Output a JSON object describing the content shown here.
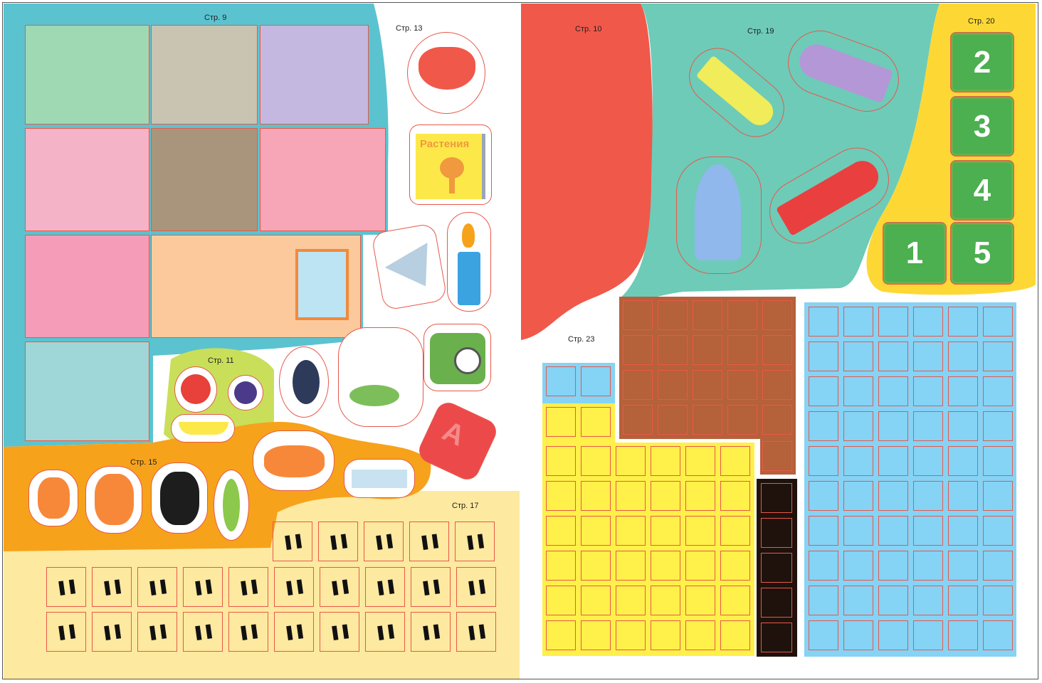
{
  "labels": {
    "p9": "Стр. 9",
    "p13": "Стр. 13",
    "p10": "Стр. 10",
    "p19": "Стр. 19",
    "p20": "Стр. 20",
    "p11": "Стр. 11",
    "p15": "Стр. 15",
    "p17": "Стр. 17",
    "p23": "Стр. 23"
  },
  "book_title": "Растения",
  "cube_letter": "A",
  "numbers": [
    "2",
    "3",
    "4",
    "1",
    "5"
  ],
  "colors": {
    "teal": "#5bc3cf",
    "mint": "#6ecbb8",
    "red": "#f0584a",
    "yellow": "#fdd835",
    "orange": "#f7a21b",
    "cream": "#fde9a0",
    "brown": "#b5613a",
    "cellYellow": "#fff04a",
    "cellBlue": "#85d3f5",
    "black": "#1f120c",
    "outline": "#e8584a"
  },
  "icons": [
    "house-rooms",
    "butterfly",
    "book",
    "paper-boat",
    "candle",
    "tropical-fruit-sticker",
    "garland",
    "alarm-clock",
    "letter-cube",
    "apple",
    "plum",
    "banana",
    "puppy",
    "milk-carton",
    "footprints",
    "rocket"
  ]
}
